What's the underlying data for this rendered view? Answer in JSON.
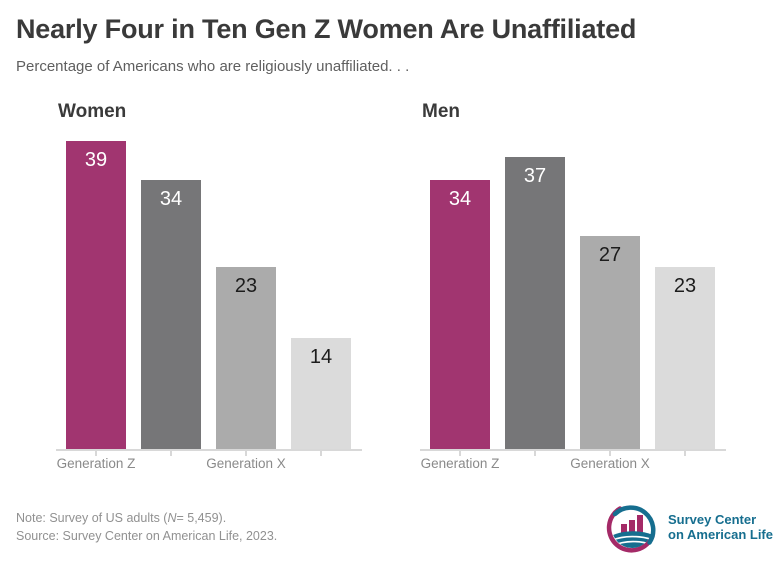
{
  "title": "Nearly Four in Ten Gen Z Women Are Unaffiliated",
  "subtitle": "Percentage of Americans who are religiously unaffiliated. . .",
  "colors": {
    "magenta": "#A13570",
    "dark_gray": "#767678",
    "medium_gray": "#ABABAB",
    "light_gray": "#DBDBDB",
    "title_text": "#3A3A3A",
    "subtitle_text": "#5F5F5F",
    "axis": "#D8D8D8",
    "axis_label_text": "#8A8A8A",
    "value_label_light": "#FFFFFF",
    "value_label_dark": "#1C1C1C",
    "note_text": "#919191",
    "logo_teal": "#166E8F",
    "logo_magenta": "#A42A67"
  },
  "chart_data": {
    "type": "bar",
    "unit": "percent",
    "ylim": [
      0,
      40
    ],
    "bar_colors": [
      "#A13570",
      "#767678",
      "#ABABAB",
      "#DBDBDB"
    ],
    "value_label_colors": [
      "#FFFFFF",
      "#FFFFFF",
      "#1C1C1C",
      "#1C1C1C"
    ],
    "panels": [
      {
        "label": "Women",
        "values": [
          39,
          34,
          23,
          14
        ],
        "axis_labels": [
          {
            "text": "Generation Z",
            "bar_index": 0
          },
          {
            "text": "Generation X",
            "bar_index": 2
          }
        ]
      },
      {
        "label": "Men",
        "values": [
          34,
          37,
          27,
          23
        ],
        "axis_labels": [
          {
            "text": "Generation Z",
            "bar_index": 0
          },
          {
            "text": "Generation X",
            "bar_index": 2
          }
        ]
      }
    ]
  },
  "note": {
    "prefix": "Note: Survey of US adults (",
    "n_symbol": "N",
    "suffix": "= 5,459)."
  },
  "source": "Source: Survey Center on American Life, 2023.",
  "logo": {
    "line1": "Survey Center",
    "line2": "on American Life"
  }
}
